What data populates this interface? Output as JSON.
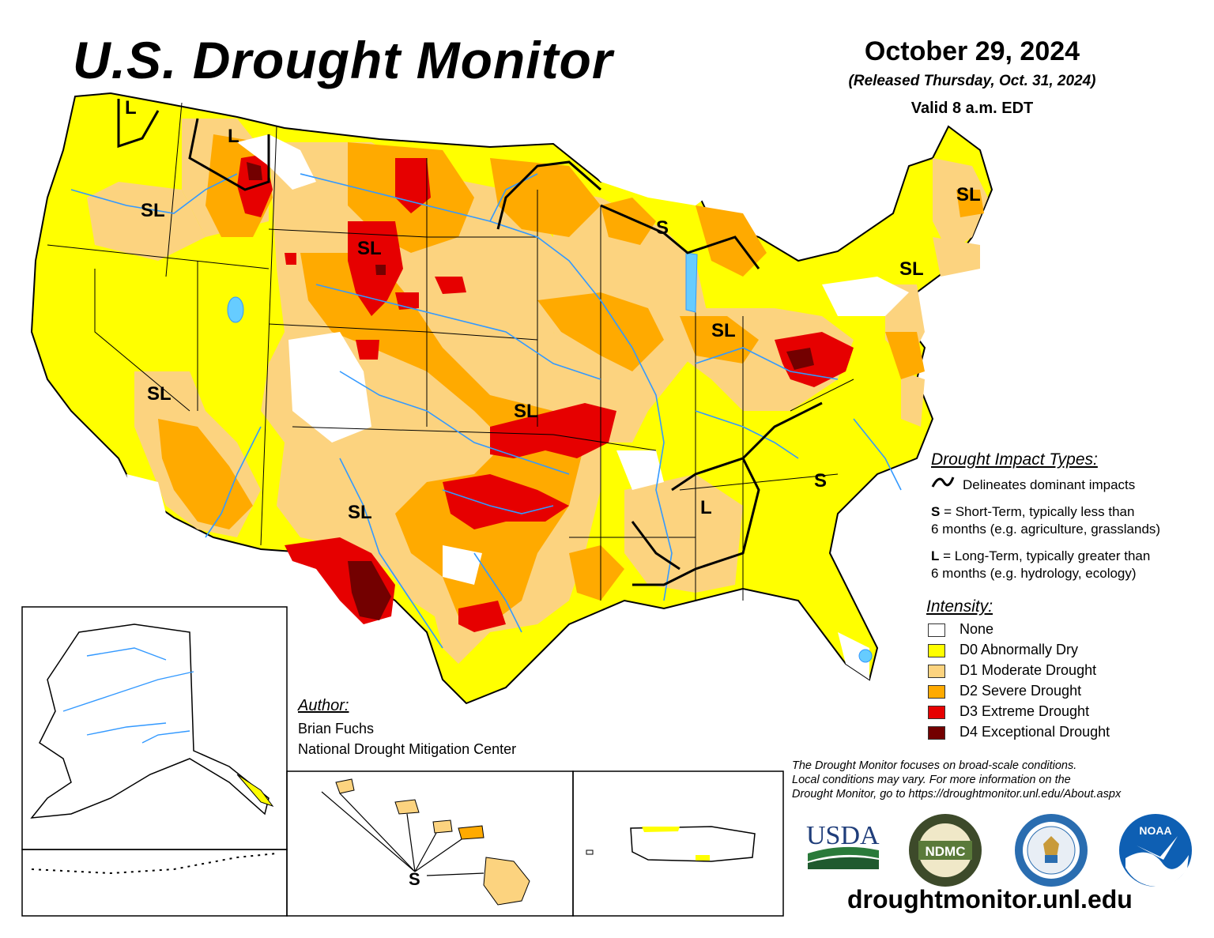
{
  "header": {
    "title": "U.S. Drought Monitor",
    "date": "October 29, 2024",
    "released": "(Released Thursday, Oct. 31, 2024)",
    "valid": "Valid 8 a.m. EDT"
  },
  "map_labels": {
    "L": "L",
    "SL": "SL",
    "S": "S"
  },
  "impact_types": {
    "heading": "Drought Impact Types:",
    "line_desc": "Delineates dominant impacts",
    "short_letter": "S",
    "short_desc_1": " = Short-Term, typically less than",
    "short_desc_2": "6 months (e.g. agriculture, grasslands)",
    "long_letter": "L",
    "long_desc_1": " = Long-Term, typically greater than",
    "long_desc_2": "6 months (e.g. hydrology, ecology)"
  },
  "intensity": {
    "heading": "Intensity:",
    "levels": [
      {
        "label": "None",
        "color": "#ffffff"
      },
      {
        "label": "D0 Abnormally Dry",
        "color": "#ffff00"
      },
      {
        "label": "D1 Moderate Drought",
        "color": "#fcd37f"
      },
      {
        "label": "D2 Severe Drought",
        "color": "#ffaa00"
      },
      {
        "label": "D3 Extreme Drought",
        "color": "#e60000"
      },
      {
        "label": "D4 Exceptional Drought",
        "color": "#730000"
      }
    ]
  },
  "author": {
    "heading": "Author:",
    "name": "Brian Fuchs",
    "org": "National Drought Mitigation Center"
  },
  "disclaimer": {
    "line1": "The Drought Monitor focuses on broad-scale conditions.",
    "line2": "Local conditions may vary. For more information on the",
    "line3": "Drought Monitor, go to https://droughtmonitor.unl.edu/About.aspx"
  },
  "logos": {
    "usda": "USDA",
    "ndmc": "NDMC",
    "noaa": "NOAA"
  },
  "website": "droughtmonitor.unl.edu",
  "colors": {
    "river": "#3399ff",
    "lake": "#66ccff",
    "d0": "#ffff00",
    "d1": "#fcd37f",
    "d2": "#ffaa00",
    "d3": "#e60000",
    "d4": "#730000"
  }
}
